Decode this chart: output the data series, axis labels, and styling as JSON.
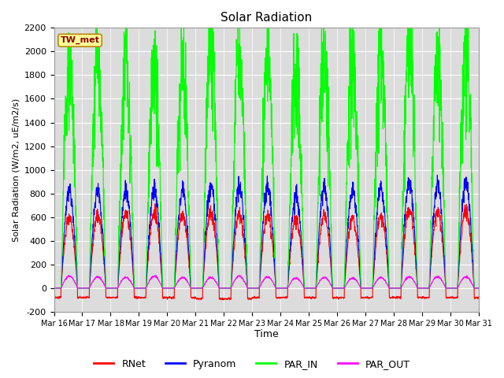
{
  "title": "Solar Radiation",
  "ylabel": "Solar Radiation (W/m2, uE/m2/s)",
  "xlabel": "Time",
  "ylim": [
    -200,
    2200
  ],
  "yticks": [
    -200,
    0,
    200,
    400,
    600,
    800,
    1000,
    1200,
    1400,
    1600,
    1800,
    2000,
    2200
  ],
  "x_tick_labels": [
    "Mar 16",
    "Mar 17",
    "Mar 18",
    "Mar 19",
    "Mar 20",
    "Mar 21",
    "Mar 22",
    "Mar 23",
    "Mar 24",
    "Mar 25",
    "Mar 26",
    "Mar 27",
    "Mar 28",
    "Mar 29",
    "Mar 30",
    "Mar 31"
  ],
  "colors": {
    "RNet": "#ff0000",
    "Pyranom": "#0000ff",
    "PAR_IN": "#00ff00",
    "PAR_OUT": "#ff00ff"
  },
  "legend_label": "TW_met",
  "legend_box_color": "#ffff99",
  "legend_box_border": "#b8860b",
  "background_color": "#dcdcdc",
  "line_width": 0.8,
  "daily_peaks": {
    "PAR_IN": [
      1870,
      1880,
      1880,
      1920,
      1900,
      2040,
      1960,
      1940,
      1820,
      1950,
      1990,
      1960,
      2100,
      1960,
      2020
    ],
    "Pyranom": [
      820,
      820,
      820,
      830,
      830,
      860,
      850,
      850,
      780,
      840,
      840,
      850,
      900,
      870,
      890
    ],
    "RNet": [
      600,
      610,
      620,
      640,
      630,
      650,
      620,
      620,
      590,
      620,
      590,
      620,
      660,
      650,
      660
    ],
    "PAR_OUT": [
      100,
      95,
      90,
      100,
      90,
      90,
      100,
      95,
      85,
      90,
      85,
      90,
      95,
      95,
      95
    ],
    "night_RNet": [
      -80,
      -80,
      -80,
      -80,
      -80,
      -90,
      -90,
      -80,
      -80,
      -80,
      -80,
      -80,
      -80,
      -80,
      -80
    ]
  },
  "figsize": [
    6.4,
    4.8
  ],
  "dpi": 100
}
